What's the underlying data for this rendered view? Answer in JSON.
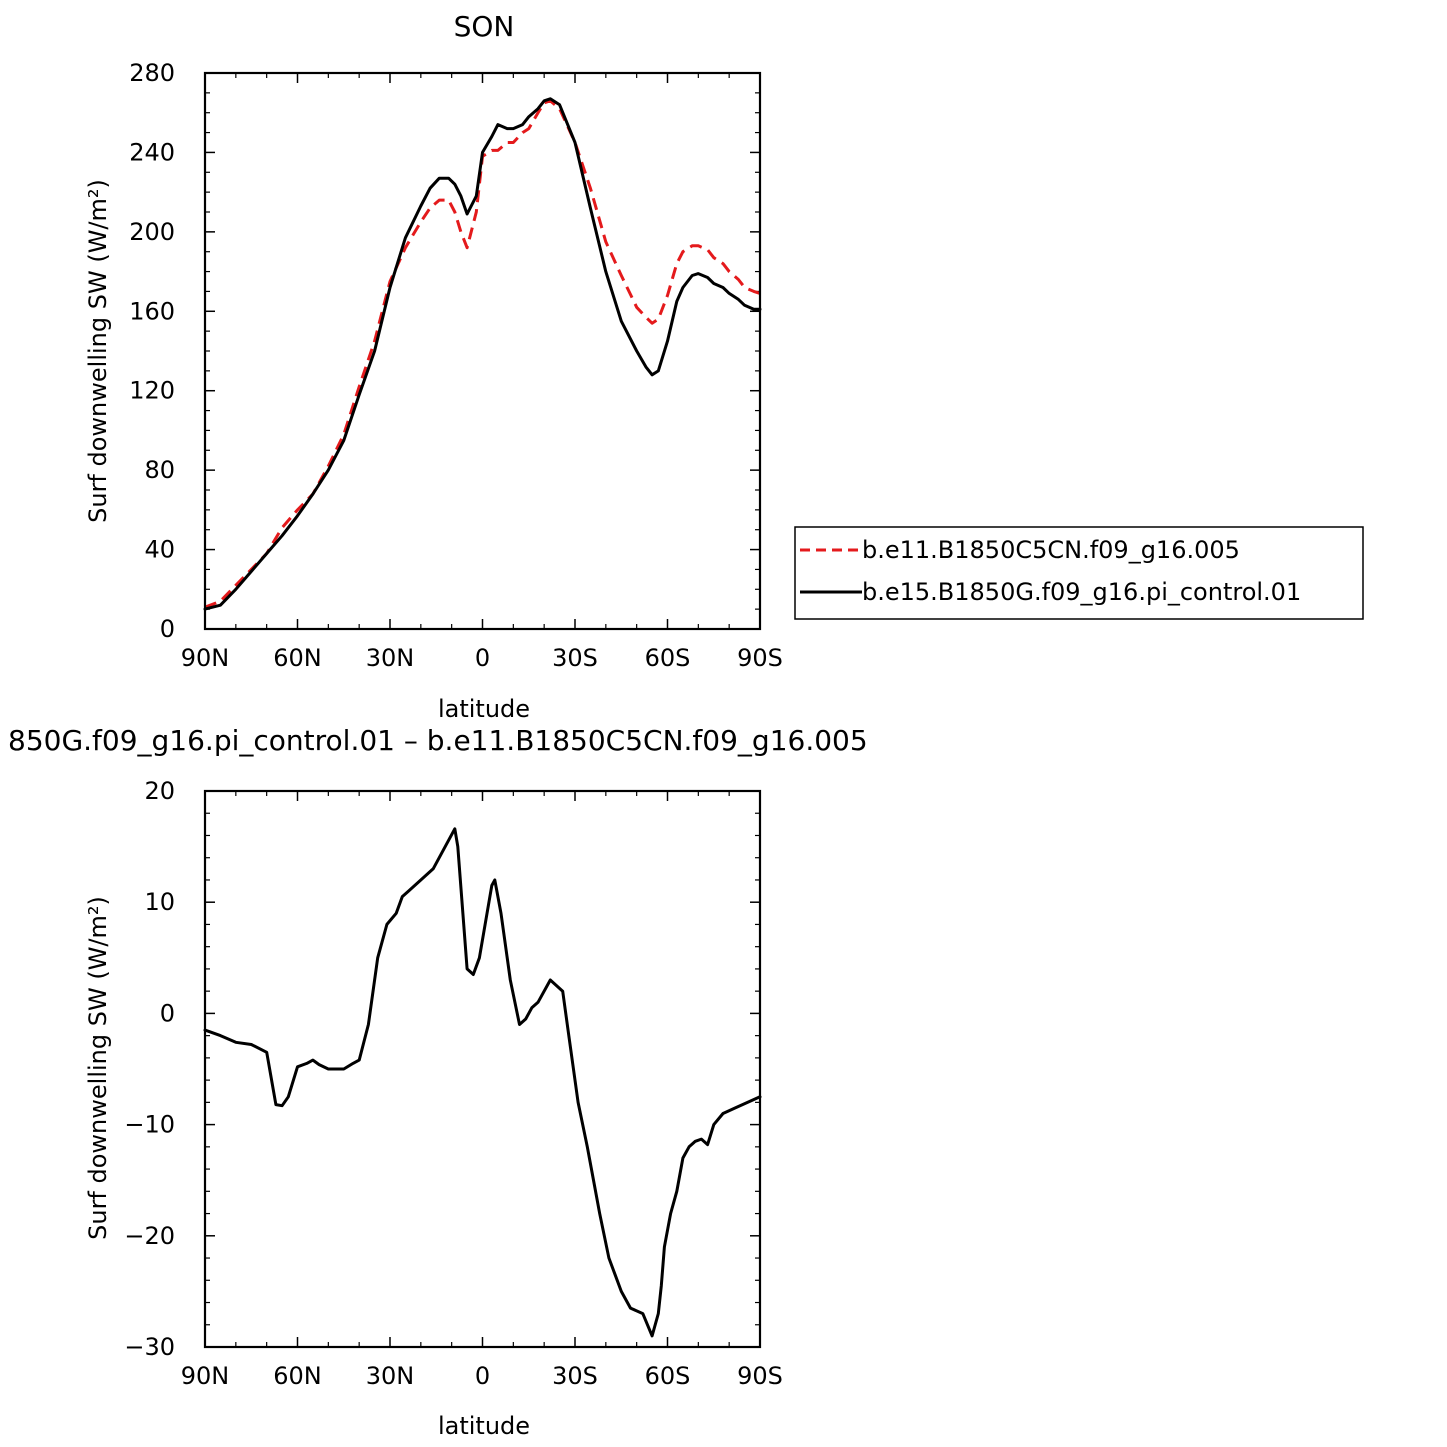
{
  "chart_data": [
    {
      "type": "line",
      "title": "SON",
      "xlabel": "latitude",
      "ylabel": "Surf downwelling SW (W/m²)",
      "xlim": [
        -90,
        90
      ],
      "x_direction": "north-to-south",
      "ylim": [
        0,
        280
      ],
      "xticks": [
        -90,
        -60,
        -30,
        0,
        30,
        60,
        90
      ],
      "xtick_labels": [
        "90N",
        "60N",
        "30N",
        "0",
        "30S",
        "60S",
        "90S"
      ],
      "yticks": [
        0,
        40,
        80,
        120,
        160,
        200,
        240,
        280
      ],
      "ytick_labels": [
        "0",
        "40",
        "80",
        "120",
        "160",
        "200",
        "240",
        "280"
      ],
      "grid": false,
      "legend_position": "right, outside plot",
      "x": [
        -90,
        -85,
        -80,
        -75,
        -70,
        -65,
        -60,
        -55,
        -50,
        -45,
        -40,
        -35,
        -30,
        -25,
        -20,
        -17,
        -14,
        -11,
        -9,
        -7,
        -5,
        -2,
        0,
        3,
        5,
        8,
        10,
        13,
        15,
        18,
        20,
        22,
        25,
        30,
        35,
        40,
        45,
        50,
        53,
        55,
        57,
        60,
        63,
        65,
        68,
        70,
        73,
        75,
        78,
        80,
        83,
        85,
        88,
        90
      ],
      "series": [
        {
          "name": "b.e11.B1850C5CN.f09_g16.005",
          "color": "#e41a1c",
          "dash": "dashed",
          "values": [
            11,
            14,
            22,
            30,
            38,
            51,
            60,
            68,
            82,
            98,
            122,
            145,
            175,
            192,
            205,
            212,
            216,
            216,
            210,
            200,
            192,
            210,
            238,
            241,
            241,
            245,
            245,
            250,
            252,
            260,
            265,
            266,
            262,
            245,
            222,
            195,
            178,
            162,
            157,
            154,
            156,
            168,
            184,
            190,
            193,
            193,
            191,
            187,
            184,
            180,
            176,
            172,
            170,
            169
          ]
        },
        {
          "name": "b.e15.B1850G.f09_g16.pi_control.01",
          "color": "#000000",
          "dash": "solid",
          "values": [
            10,
            12,
            20,
            29,
            38,
            47,
            57,
            68,
            80,
            95,
            118,
            140,
            172,
            197,
            213,
            222,
            227,
            227,
            224,
            218,
            209,
            218,
            240,
            248,
            254,
            252,
            252,
            254,
            258,
            262,
            266,
            267,
            264,
            245,
            212,
            180,
            155,
            140,
            132,
            128,
            130,
            145,
            165,
            172,
            178,
            179,
            177,
            174,
            172,
            169,
            166,
            163,
            161,
            161
          ]
        }
      ]
    },
    {
      "type": "line",
      "title": "850G.f09_g16.pi_control.01 – b.e11.B1850C5CN.f09_g16.005",
      "xlabel": "latitude",
      "ylabel": "Surf downwelling SW (W/m²)",
      "xlim": [
        -90,
        90
      ],
      "x_direction": "north-to-south",
      "ylim": [
        -30,
        20
      ],
      "xticks": [
        -90,
        -60,
        -30,
        0,
        30,
        60,
        90
      ],
      "xtick_labels": [
        "90N",
        "60N",
        "30N",
        "0",
        "30S",
        "60S",
        "90S"
      ],
      "yticks": [
        -30,
        -20,
        -10,
        0,
        10,
        20
      ],
      "ytick_labels": [
        "−30",
        "−20",
        "−10",
        "0",
        "10",
        "20"
      ],
      "grid": false,
      "series": [
        {
          "name": "",
          "color": "#000000",
          "dash": "solid",
          "values": [
            -1.5,
            -2,
            -2.6,
            -2.8,
            -3.5,
            -8.2,
            -8.3,
            -7.5,
            -4.8,
            -4.5,
            -4.2,
            -4.6,
            -5,
            -5,
            -4.5,
            -4.2,
            -1,
            5,
            8,
            9,
            10.5,
            11,
            12,
            13,
            16.6,
            15,
            4,
            3.5,
            5,
            11.5,
            12,
            9,
            3,
            -1,
            -0.5,
            0.5,
            1,
            3,
            2,
            -2,
            -8,
            -12,
            -15,
            -18,
            -22,
            -23.5,
            -25,
            -26.5,
            -27,
            -29,
            -27,
            -24.5,
            -21,
            -18,
            -16,
            -13,
            -12,
            -11.5,
            -11.3,
            -11.8,
            -10,
            -9,
            -8.5,
            -7.5
          ]
        }
      ],
      "x": [
        -90,
        -85,
        -80,
        -75,
        -70,
        -67,
        -65,
        -63,
        -60,
        -57,
        -55,
        -53,
        -50,
        -45,
        -42,
        -40,
        -37,
        -34,
        -31,
        -28,
        -26,
        -24,
        -20,
        -16,
        -9,
        -8,
        -5,
        -3,
        -1,
        3,
        4,
        6,
        9,
        12,
        14,
        16,
        18,
        22,
        26,
        28,
        31,
        34,
        36,
        38,
        41,
        43,
        45,
        48,
        52,
        55,
        57,
        58,
        59,
        61,
        63,
        65,
        67,
        69,
        71,
        73,
        75,
        78,
        82,
        90
      ]
    }
  ]
}
